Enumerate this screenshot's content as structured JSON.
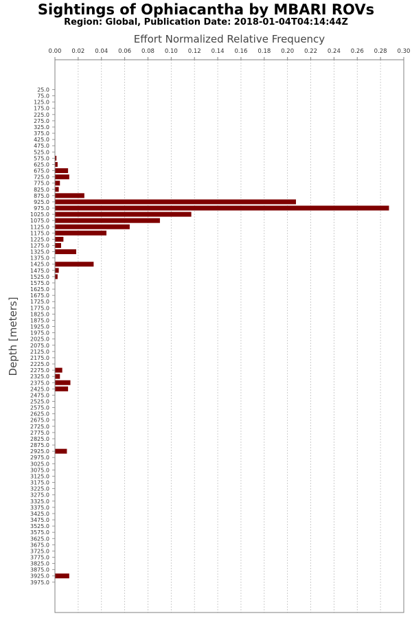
{
  "chart_data": {
    "type": "bar",
    "orientation": "horizontal",
    "title": "Sightings of Ophiacantha by MBARI ROVs",
    "subtitle": "Region: Global, Publication Date: 2018-01-04T04:14:44Z",
    "xlabel": "Effort Normalized Relative Frequency",
    "ylabel": "Depth [meters]",
    "xlim": [
      0,
      0.3
    ],
    "xticks": [
      "0.00",
      "0.02",
      "0.04",
      "0.06",
      "0.08",
      "0.10",
      "0.12",
      "0.14",
      "0.16",
      "0.18",
      "0.20",
      "0.22",
      "0.24",
      "0.26",
      "0.28",
      "0.30"
    ],
    "grid": true,
    "bar_color": "#7f0000",
    "categories": [
      "25.0",
      "75.0",
      "125.0",
      "175.0",
      "225.0",
      "275.0",
      "325.0",
      "375.0",
      "425.0",
      "475.0",
      "525.0",
      "575.0",
      "625.0",
      "675.0",
      "725.0",
      "775.0",
      "825.0",
      "875.0",
      "925.0",
      "975.0",
      "1025.0",
      "1075.0",
      "1125.0",
      "1175.0",
      "1225.0",
      "1275.0",
      "1325.0",
      "1375.0",
      "1425.0",
      "1475.0",
      "1525.0",
      "1575.0",
      "1625.0",
      "1675.0",
      "1725.0",
      "1775.0",
      "1825.0",
      "1875.0",
      "1925.0",
      "1975.0",
      "2025.0",
      "2075.0",
      "2125.0",
      "2175.0",
      "2225.0",
      "2275.0",
      "2325.0",
      "2375.0",
      "2425.0",
      "2475.0",
      "2525.0",
      "2575.0",
      "2625.0",
      "2675.0",
      "2725.0",
      "2775.0",
      "2825.0",
      "2875.0",
      "2925.0",
      "2975.0",
      "3025.0",
      "3075.0",
      "3125.0",
      "3175.0",
      "3225.0",
      "3275.0",
      "3325.0",
      "3375.0",
      "3425.0",
      "3475.0",
      "3525.0",
      "3575.0",
      "3625.0",
      "3675.0",
      "3725.0",
      "3775.0",
      "3825.0",
      "3875.0",
      "3925.0",
      "3975.0"
    ],
    "values": [
      0,
      0,
      0,
      0,
      0,
      0,
      0,
      0,
      0,
      0,
      0,
      0.001,
      0.002,
      0.011,
      0.012,
      0.004,
      0.003,
      0.025,
      0.207,
      0.287,
      0.117,
      0.09,
      0.064,
      0.044,
      0.007,
      0.005,
      0.018,
      0,
      0.033,
      0.003,
      0.002,
      0,
      0,
      0,
      0,
      0,
      0,
      0,
      0,
      0,
      0,
      0,
      0,
      0,
      0,
      0.006,
      0.004,
      0.013,
      0.011,
      0,
      0,
      0,
      0,
      0,
      0,
      0,
      0,
      0,
      0.01,
      0,
      0,
      0,
      0,
      0,
      0,
      0,
      0,
      0,
      0,
      0,
      0,
      0,
      0,
      0,
      0,
      0,
      0,
      0,
      0.012,
      0
    ]
  }
}
